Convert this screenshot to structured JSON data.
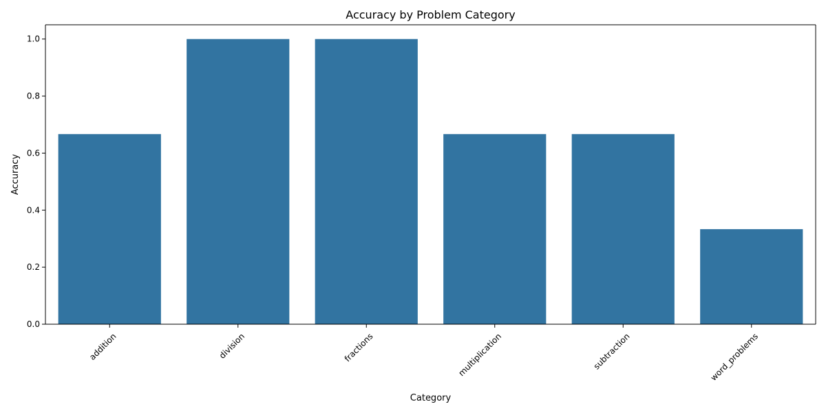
{
  "chart_data": {
    "type": "bar",
    "title": "Accuracy by Problem Category",
    "xlabel": "Category",
    "ylabel": "Accuracy",
    "categories": [
      "addition",
      "division",
      "fractions",
      "multiplication",
      "subtraction",
      "word_problems"
    ],
    "values": [
      0.6667,
      1.0,
      1.0,
      0.6667,
      0.6667,
      0.3333
    ],
    "ylim": [
      0,
      1.05
    ],
    "yticks": [
      "0.0",
      "0.2",
      "0.4",
      "0.6",
      "0.8",
      "1.0"
    ],
    "x_tick_rotation_deg": 45,
    "grid": false,
    "legend": "none",
    "bar_color": "#3274a1"
  }
}
